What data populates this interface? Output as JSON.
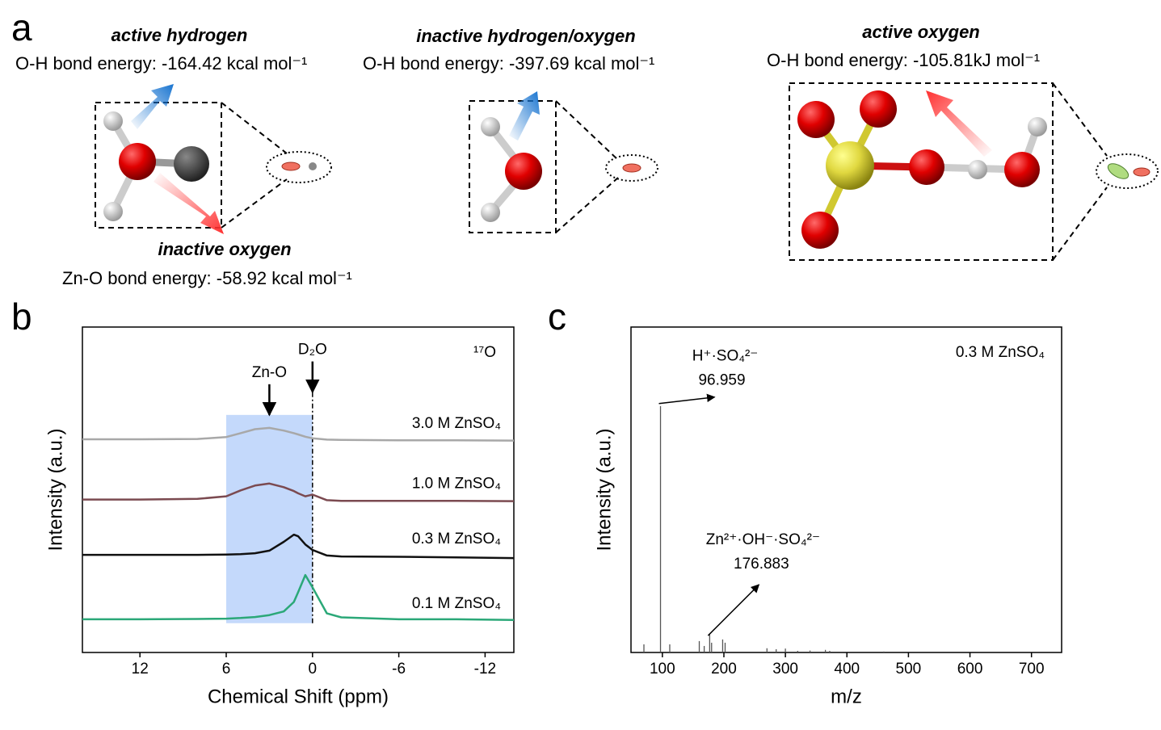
{
  "figure_a": {
    "label": "a",
    "groups": [
      {
        "title": "active hydrogen",
        "energy": "O-H bond energy:  -164.42 kcal mol⁻¹"
      },
      {
        "title": "inactive hydrogen/oxygen",
        "energy": "O-H bond energy:  -397.69 kcal mol⁻¹"
      },
      {
        "title": "active oxygen",
        "energy": "O-H bond energy:  -105.81kJ mol⁻¹"
      }
    ],
    "inactive": {
      "title": "inactive oxygen",
      "energy": "Zn-O bond energy:  -58.92 kcal mol⁻¹"
    }
  },
  "chart_data": [
    {
      "type": "line",
      "label": "b",
      "xlabel": "Chemical Shift (ppm)",
      "ylabel": "Intensity (a.u.)",
      "inset": "¹⁷O",
      "xlim": [
        16,
        -14
      ],
      "ylim": [
        0,
        100
      ],
      "xticks": [
        12,
        6,
        0,
        -6,
        -12
      ],
      "x": [
        16,
        12,
        8,
        6,
        5,
        4,
        3,
        2,
        1.3,
        1,
        0.5,
        0,
        -1,
        -2,
        -6,
        -10,
        -14
      ],
      "series": [
        {
          "name": "3.0 M ZnSO₄",
          "color": "#a8a8a8",
          "values": [
            65.5,
            65.5,
            65.6,
            66.2,
            67.4,
            68.6,
            69,
            68.2,
            67.4,
            67,
            66.3,
            65.8,
            65.4,
            65.3,
            65.2,
            65.2,
            65.1
          ]
        },
        {
          "name": "1.0 M ZnSO₄",
          "color": "#7b4a50",
          "values": [
            47,
            47,
            47.2,
            48,
            49.8,
            51.3,
            51.9,
            50.8,
            49.6,
            48.9,
            48,
            48.5,
            46.8,
            46.6,
            46.6,
            46.6,
            46.5
          ]
        },
        {
          "name": "0.3 M ZnSO₄",
          "color": "#111111",
          "values": [
            30,
            30,
            30,
            30.1,
            30.2,
            30.5,
            31.3,
            34,
            36.2,
            35.7,
            33.2,
            31.5,
            29.8,
            29.5,
            29.4,
            29.2,
            29
          ]
        },
        {
          "name": "0.1 M ZnSO₄",
          "color": "#2ba878",
          "values": [
            10.2,
            10.2,
            10.3,
            10.4,
            10.6,
            10.9,
            11.5,
            12.6,
            15.5,
            18.5,
            23.8,
            20,
            12,
            10.8,
            10.2,
            10.2,
            10
          ]
        }
      ],
      "highlight": {
        "x": [
          6,
          0
        ],
        "y": [
          9,
          73
        ],
        "color": "#c4d9fb"
      },
      "reference_line": {
        "x": 0,
        "y": [
          9,
          81
        ]
      },
      "annotations": [
        {
          "text": "Zn-O",
          "x": 3,
          "y": 73
        },
        {
          "text": "D₂O",
          "x": 0,
          "y": 80
        }
      ]
    },
    {
      "type": "stem",
      "label": "c",
      "xlabel": "m/z",
      "ylabel": "Intensity (a.u.)",
      "inset": "0.3 M ZnSO₄",
      "xlim": [
        49,
        749
      ],
      "ylim": [
        0,
        100
      ],
      "xticks": [
        100,
        200,
        300,
        400,
        500,
        600,
        700
      ],
      "color": "#555555",
      "x": [
        70,
        96.959,
        112,
        160,
        168,
        176.883,
        180,
        198,
        202,
        270,
        285,
        300,
        320,
        340,
        365,
        372,
        460
      ],
      "values": [
        2.5,
        75.7,
        2.5,
        3.5,
        2,
        5.5,
        3,
        4,
        3,
        1.3,
        1,
        1.2,
        0.5,
        0.6,
        0.8,
        0.5,
        0.3
      ],
      "annotations": [
        {
          "text": "H⁺·SO₄²⁻",
          "x": 96.959,
          "y": 76.5
        },
        {
          "text": "Zn²⁺·OH⁻·SO₄²⁻",
          "x": 176.883,
          "y": 5.2
        }
      ]
    }
  ]
}
